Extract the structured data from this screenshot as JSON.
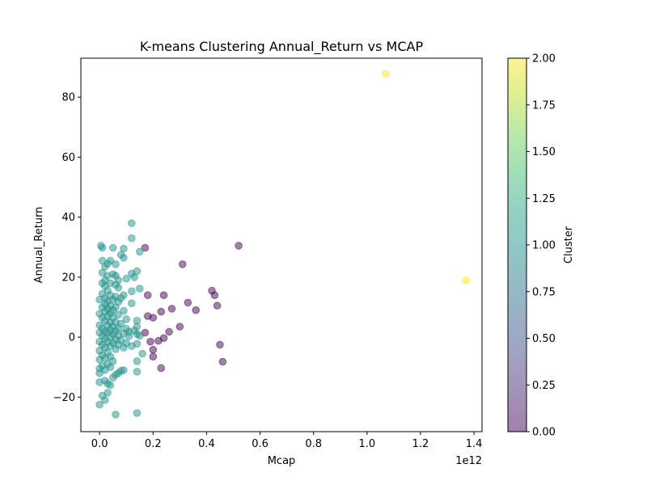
{
  "chart_data": {
    "type": "scatter",
    "title": "K-means Clustering Annual_Return vs MCAP",
    "xlabel": "Mcap",
    "ylabel": "Annual_Return",
    "x_offset_label": "1e12",
    "xlim": [
      -0.07,
      1.43
    ],
    "ylim": [
      -31.5,
      93.0
    ],
    "x_ticks": [
      0.0,
      0.2,
      0.4,
      0.6,
      0.8,
      1.0,
      1.2,
      1.4
    ],
    "x_tick_labels": [
      "0.0",
      "0.2",
      "0.4",
      "0.6",
      "0.8",
      "1.0",
      "1.2",
      "1.4"
    ],
    "y_ticks": [
      -20,
      0,
      20,
      40,
      60,
      80
    ],
    "y_tick_labels": [
      "−20",
      "0",
      "20",
      "40",
      "60",
      "80"
    ],
    "grid": false,
    "point_alpha": 0.5,
    "colorbar": {
      "label": "Cluster",
      "range": [
        0.0,
        2.0
      ],
      "ticks": [
        0.0,
        0.25,
        0.5,
        0.75,
        1.0,
        1.25,
        1.5,
        1.75,
        2.0
      ],
      "tick_labels": [
        "0.00",
        "0.25",
        "0.50",
        "0.75",
        "1.00",
        "1.25",
        "1.50",
        "1.75",
        "2.00"
      ],
      "colormap": "viridis"
    },
    "series": [
      {
        "cluster": 0,
        "color": "#440154",
        "points": [
          [
            0.17,
            29.8
          ],
          [
            0.52,
            30.5
          ],
          [
            0.31,
            24.3
          ],
          [
            0.42,
            15.5
          ],
          [
            0.43,
            14.0
          ],
          [
            0.24,
            14.0
          ],
          [
            0.18,
            14.0
          ],
          [
            0.33,
            11.5
          ],
          [
            0.44,
            10.5
          ],
          [
            0.27,
            9.5
          ],
          [
            0.36,
            9.0
          ],
          [
            0.23,
            8.5
          ],
          [
            0.18,
            7.0
          ],
          [
            0.2,
            6.5
          ],
          [
            0.3,
            3.5
          ],
          [
            0.26,
            1.8
          ],
          [
            0.17,
            1.5
          ],
          [
            0.24,
            -0.3
          ],
          [
            0.22,
            -1.2
          ],
          [
            0.19,
            -1.5
          ],
          [
            0.45,
            -2.5
          ],
          [
            0.2,
            -4.2
          ],
          [
            0.2,
            -6.5
          ],
          [
            0.46,
            -8.2
          ],
          [
            0.23,
            -10.3
          ]
        ]
      },
      {
        "cluster": 1,
        "color": "#21918c",
        "points": [
          [
            0.12,
            38.0
          ],
          [
            0.12,
            33.0
          ],
          [
            0.005,
            30.5
          ],
          [
            0.01,
            29.8
          ],
          [
            0.05,
            29.8
          ],
          [
            0.09,
            29.5
          ],
          [
            0.15,
            28.5
          ],
          [
            0.08,
            27.5
          ],
          [
            0.09,
            26.5
          ],
          [
            0.01,
            25.5
          ],
          [
            0.04,
            25.5
          ],
          [
            0.03,
            24.5
          ],
          [
            0.06,
            24.3
          ],
          [
            0.02,
            23.5
          ],
          [
            0.14,
            22.0
          ],
          [
            0.01,
            21.5
          ],
          [
            0.12,
            21.2
          ],
          [
            0.05,
            21.0
          ],
          [
            0.03,
            20.5
          ],
          [
            0.06,
            20.5
          ],
          [
            0.1,
            19.5
          ],
          [
            0.02,
            19.0
          ],
          [
            0.07,
            19.0
          ],
          [
            0.13,
            20.0
          ],
          [
            0.01,
            18.0
          ],
          [
            0.04,
            18.0
          ],
          [
            0.06,
            17.5
          ],
          [
            0.02,
            17.0
          ],
          [
            0.15,
            16.2
          ],
          [
            0.07,
            16.5
          ],
          [
            0.12,
            15.3
          ],
          [
            0.03,
            15.5
          ],
          [
            0.01,
            14.5
          ],
          [
            0.09,
            14.0
          ],
          [
            0.04,
            14.0
          ],
          [
            0.06,
            13.5
          ],
          [
            0.02,
            13.0
          ],
          [
            0.08,
            13.0
          ],
          [
            0.0,
            12.5
          ],
          [
            0.03,
            12.0
          ],
          [
            0.05,
            12.5
          ],
          [
            0.07,
            11.8
          ],
          [
            0.12,
            11.3
          ],
          [
            0.02,
            11.0
          ],
          [
            0.04,
            10.5
          ],
          [
            0.01,
            10.0
          ],
          [
            0.06,
            10.0
          ],
          [
            0.03,
            9.5
          ],
          [
            0.05,
            9.0
          ],
          [
            0.09,
            8.8
          ],
          [
            0.02,
            8.5
          ],
          [
            0.04,
            8.0
          ],
          [
            0.0,
            7.8
          ],
          [
            0.07,
            7.5
          ],
          [
            0.03,
            7.0
          ],
          [
            0.01,
            6.5
          ],
          [
            0.05,
            6.5
          ],
          [
            0.1,
            6.0
          ],
          [
            0.14,
            5.5
          ],
          [
            0.02,
            5.5
          ],
          [
            0.04,
            5.0
          ],
          [
            0.06,
            5.0
          ],
          [
            0.08,
            4.5
          ],
          [
            0.0,
            4.0
          ],
          [
            0.03,
            4.0
          ],
          [
            0.05,
            3.5
          ],
          [
            0.14,
            3.5
          ],
          [
            0.07,
            3.0
          ],
          [
            0.01,
            3.0
          ],
          [
            0.1,
            2.8
          ],
          [
            0.04,
            2.5
          ],
          [
            0.13,
            2.2
          ],
          [
            0.02,
            2.0
          ],
          [
            0.06,
            2.0
          ],
          [
            0.11,
            1.8
          ],
          [
            0.0,
            1.5
          ],
          [
            0.03,
            1.5
          ],
          [
            0.09,
            1.3
          ],
          [
            0.14,
            1.0
          ],
          [
            0.05,
            1.0
          ],
          [
            0.07,
            0.5
          ],
          [
            0.01,
            0.5
          ],
          [
            0.11,
            0.3
          ],
          [
            0.04,
            0.0
          ],
          [
            0.15,
            0.5
          ],
          [
            0.02,
            -0.5
          ],
          [
            0.06,
            -0.8
          ],
          [
            0.08,
            -1.0
          ],
          [
            0.0,
            -1.5
          ],
          [
            0.03,
            -1.5
          ],
          [
            0.05,
            -2.0
          ],
          [
            0.1,
            -2.0
          ],
          [
            0.14,
            -2.2
          ],
          [
            0.07,
            -2.5
          ],
          [
            0.01,
            -2.5
          ],
          [
            0.12,
            -3.0
          ],
          [
            0.04,
            -3.0
          ],
          [
            0.02,
            -3.5
          ],
          [
            0.09,
            -3.5
          ],
          [
            0.06,
            -4.0
          ],
          [
            0.0,
            -4.5
          ],
          [
            0.03,
            -5.0
          ],
          [
            0.16,
            -5.5
          ],
          [
            0.01,
            -6.0
          ],
          [
            0.04,
            -6.5
          ],
          [
            0.02,
            -7.0
          ],
          [
            0.0,
            -7.5
          ],
          [
            0.05,
            -8.0
          ],
          [
            0.14,
            -8.0
          ],
          [
            0.03,
            -9.0
          ],
          [
            0.01,
            -9.5
          ],
          [
            0.04,
            -10.0
          ],
          [
            0.0,
            -10.5
          ],
          [
            0.02,
            -11.0
          ],
          [
            0.09,
            -11.0
          ],
          [
            0.08,
            -11.2
          ],
          [
            0.14,
            -11.5
          ],
          [
            0.0,
            -12.0
          ],
          [
            0.06,
            -12.5
          ],
          [
            0.07,
            -12.0
          ],
          [
            0.05,
            -13.5
          ],
          [
            0.02,
            -14.5
          ],
          [
            0.0,
            -15.0
          ],
          [
            0.03,
            -15.5
          ],
          [
            0.04,
            -16.0
          ],
          [
            0.03,
            -18.5
          ],
          [
            0.01,
            -19.5
          ],
          [
            0.02,
            -21.0
          ],
          [
            0.0,
            -22.5
          ],
          [
            0.06,
            -25.8
          ],
          [
            0.14,
            -25.3
          ]
        ]
      },
      {
        "cluster": 2,
        "color": "#fde725",
        "points": [
          [
            1.07,
            87.8
          ],
          [
            1.37,
            19.0
          ]
        ]
      }
    ]
  }
}
